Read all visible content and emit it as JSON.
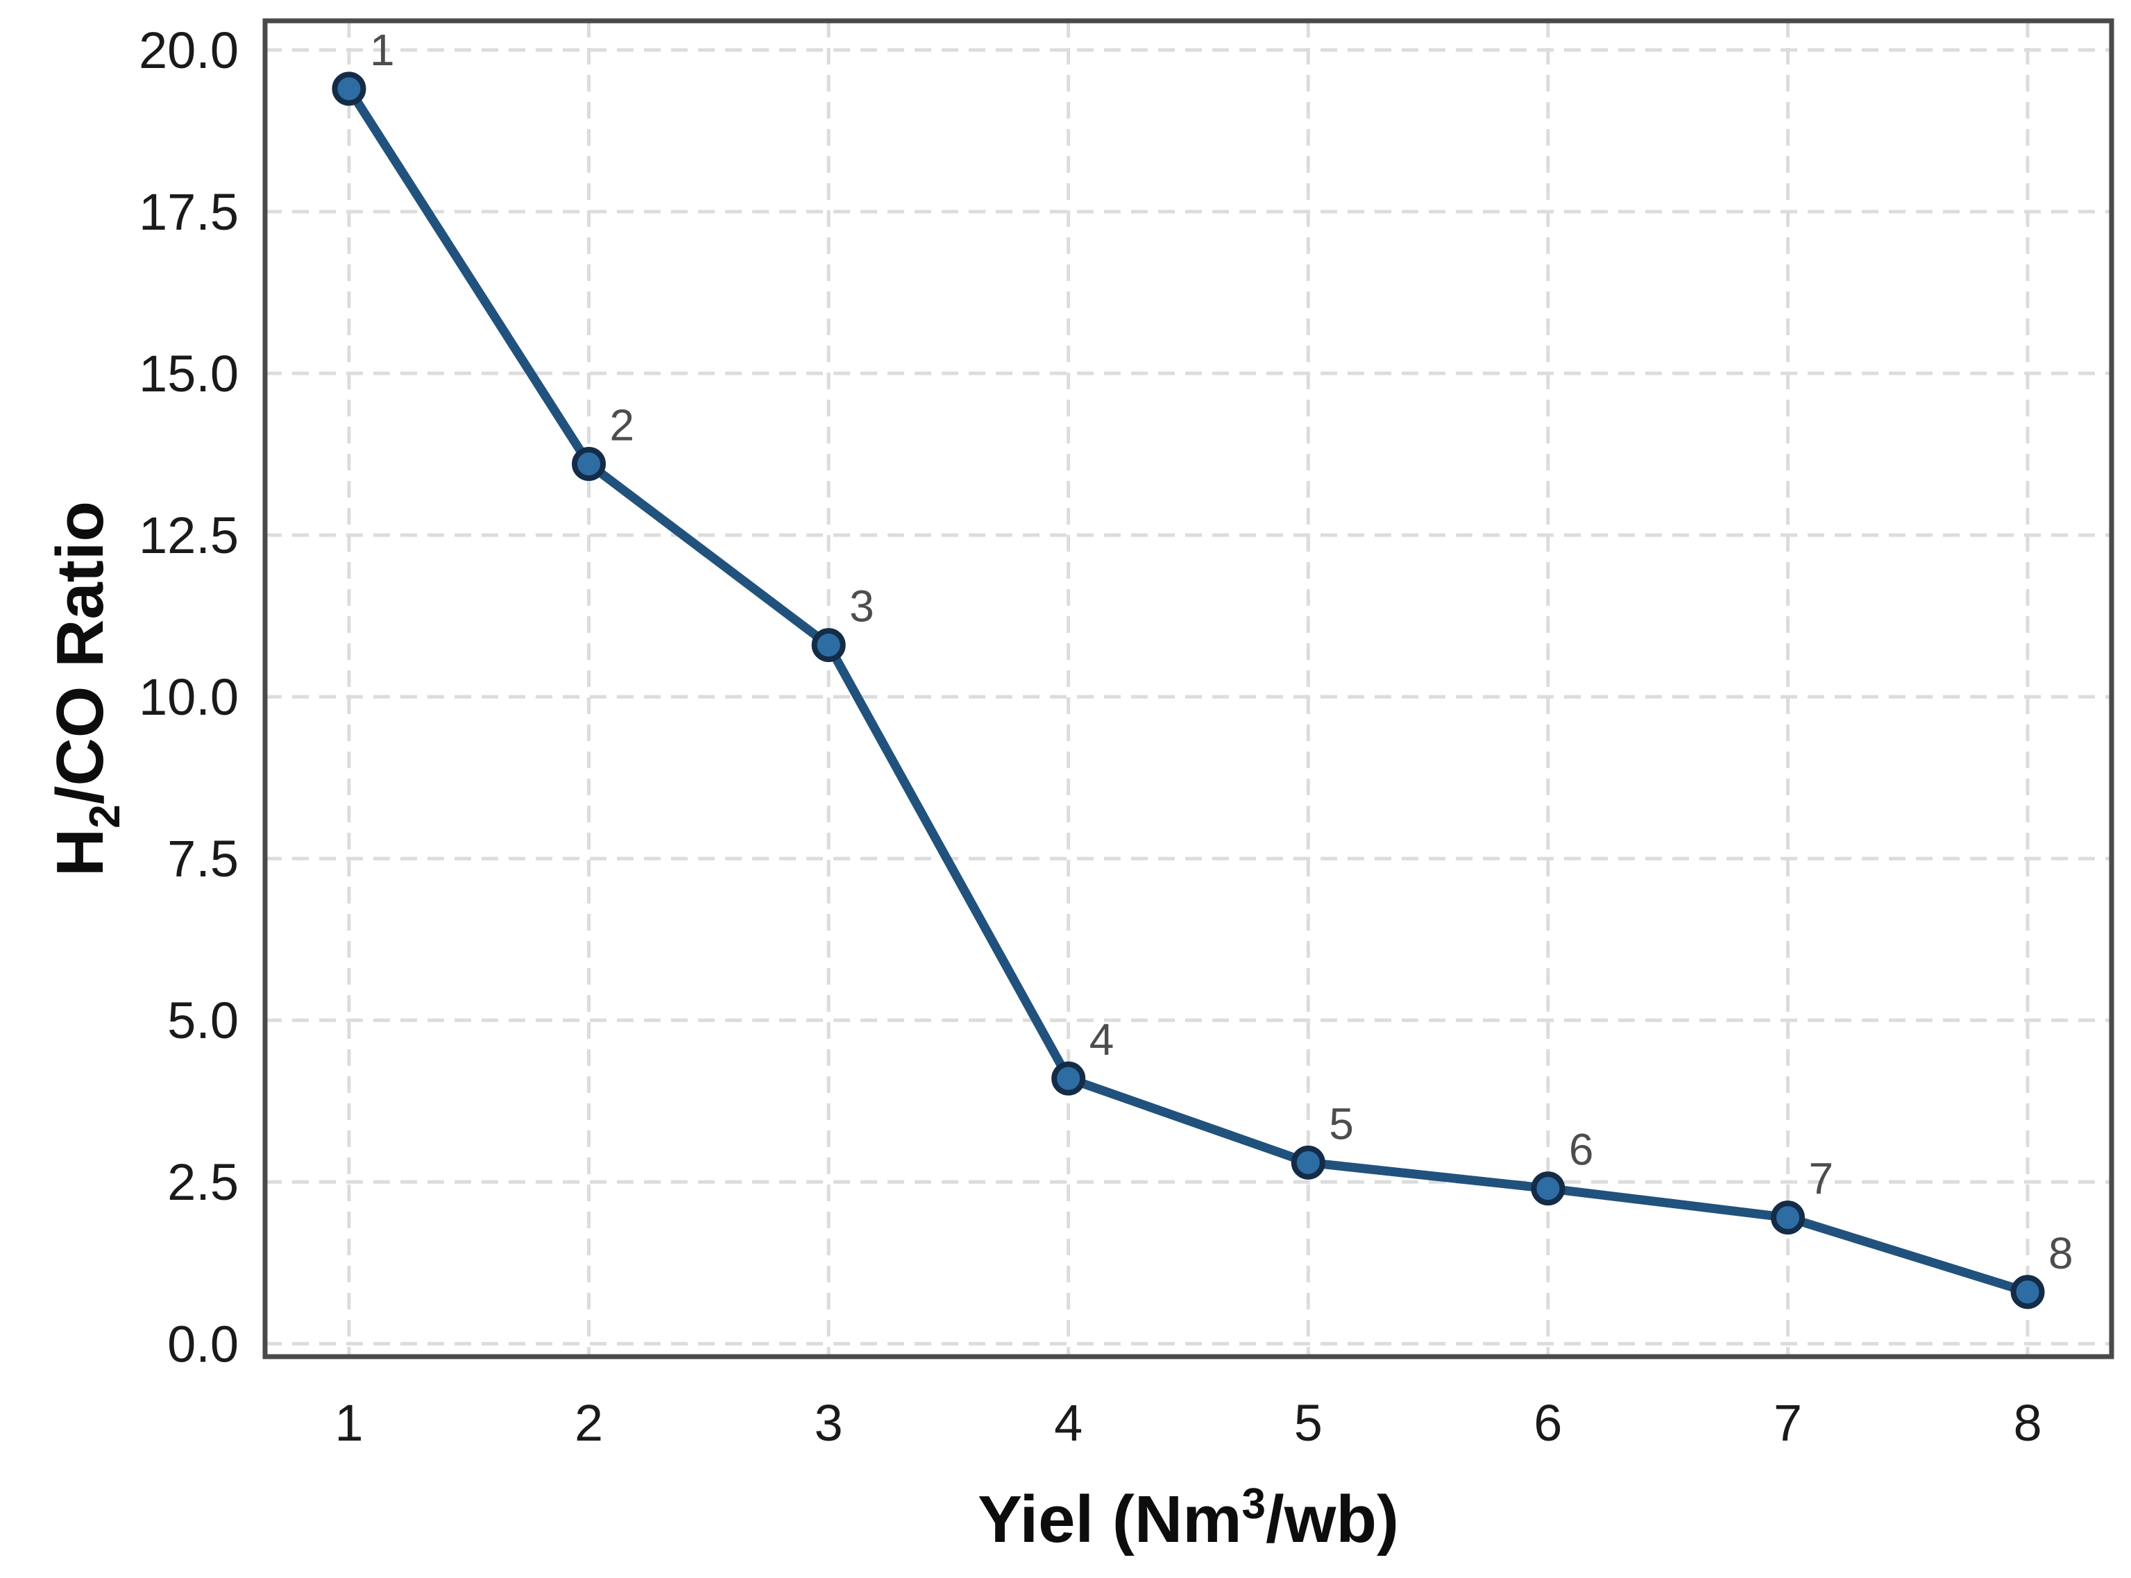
{
  "chart_data": {
    "type": "line",
    "title": "",
    "x": [
      1,
      2,
      3,
      4,
      5,
      6,
      7,
      8
    ],
    "values": [
      19.4,
      13.6,
      10.8,
      4.1,
      2.8,
      2.4,
      1.95,
      0.8
    ],
    "point_labels": [
      "1",
      "2",
      "3",
      "4",
      "5",
      "6",
      "7",
      "8"
    ],
    "xlabel_text": "Yiel (Nm3/wb)",
    "xlabel_parts": {
      "prefix": "Yiel (Nm",
      "superscript": "3",
      "suffix": "/wb)"
    },
    "ylabel_text": "H2/CO Ratio",
    "ylabel_parts": {
      "prefix": "H",
      "subscript": "2",
      "suffix": "/CO Ratio"
    },
    "x_ticks": [
      "1",
      "2",
      "3",
      "4",
      "5",
      "6",
      "7",
      "8"
    ],
    "y_ticks": [
      "0.0",
      "2.5",
      "5.0",
      "7.5",
      "10.0",
      "12.5",
      "15.0",
      "17.5",
      "20.0"
    ],
    "xlim": [
      0.65,
      8.35
    ],
    "ylim": [
      -0.2,
      20.45
    ],
    "grid": true,
    "grid_style": "dashed",
    "legend_position": "none",
    "colors": {
      "background": "#ffffff",
      "line": "#21527d",
      "marker_fill": "#2e6da4",
      "marker_edge": "#142c47",
      "grid": "#dcdcdc",
      "spine": "#4a4a4a",
      "tick_label": "#1a1a1a",
      "axis_label": "#0d0d0d",
      "annotation": "#4d4d4d"
    }
  }
}
